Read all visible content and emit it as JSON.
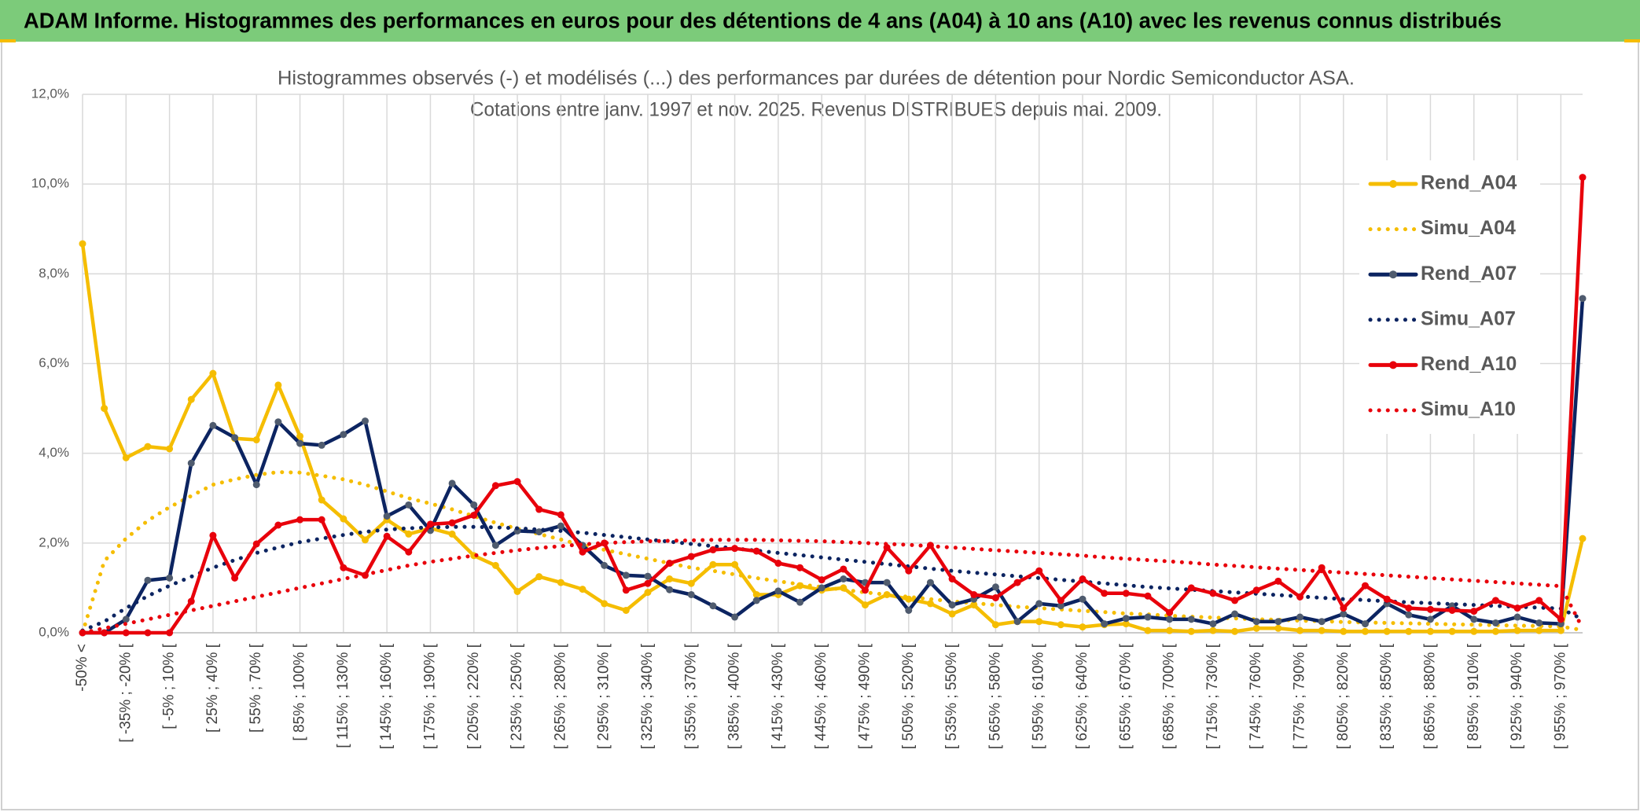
{
  "header": {
    "title": "ADAM Informe. Histogrammes des performances en euros pour des détentions de 4 ans (A04) à 10 ans (A10) avec les revenus connus distribués"
  },
  "chart_data": {
    "type": "line",
    "title": [
      "Histogrammes observés (-) et modélisés (...) des performances par durées de détention pour Nordic Semiconductor ASA.",
      "Cotations entre janv. 1997 et nov. 2025. Revenus DISTRIBUES depuis mai. 2009."
    ],
    "categories": [
      "-50% <",
      null,
      "[ -35% ; -20% [",
      null,
      "[ -5% ; 10% [",
      null,
      "[ 25% ; 40% [",
      null,
      "[ 55% ; 70% [",
      null,
      "[ 85% ; 100% [",
      null,
      "[ 115% ; 130% [",
      null,
      "[ 145% ; 160% [",
      null,
      "[ 175% ; 190% [",
      null,
      "[ 205% ; 220% [",
      null,
      "[ 235% ; 250% [",
      null,
      "[ 265% ; 280% [",
      null,
      "[ 295% ; 310% [",
      null,
      "[ 325% ; 340% [",
      null,
      "[ 355% ; 370% [",
      null,
      "[ 385% ; 400% [",
      null,
      "[ 415% ; 430% [",
      null,
      "[ 445% ; 460% [",
      null,
      "[ 475% ; 490% [",
      null,
      "[ 505% ; 520% [",
      null,
      "[ 535% ; 550% [",
      null,
      "[ 565% ; 580% [",
      null,
      "[ 595% ; 610% [",
      null,
      "[ 625% ; 640% [",
      null,
      "[ 655% ; 670% [",
      null,
      "[ 685% ; 700% [",
      null,
      "[ 715% ; 730% [",
      null,
      "[ 745% ; 760% [",
      null,
      "[ 775% ; 790% [",
      null,
      "[ 805% ; 820% [",
      null,
      "[ 835% ; 850% [",
      null,
      "[ 865% ; 880% [",
      null,
      "[ 895% ; 910% [",
      null,
      "[ 925% ; 940% [",
      null,
      "[ 955% ; 970% [",
      null
    ],
    "ylim": [
      0,
      12
    ],
    "yticks": [
      {
        "value": 0,
        "label": "0,0%"
      },
      {
        "value": 2,
        "label": "2,0%"
      },
      {
        "value": 4,
        "label": "4,0%"
      },
      {
        "value": 6,
        "label": "6,0%"
      },
      {
        "value": 8,
        "label": "8,0%"
      },
      {
        "value": 10,
        "label": "10,0%"
      },
      {
        "value": 12,
        "label": "12,0%"
      }
    ],
    "grid": true,
    "legend": "right",
    "series": [
      {
        "name": "Rend_A04",
        "color": "#f5bd00",
        "style": "solid",
        "markers": true,
        "marker_color": "#f5bd00",
        "values": [
          8.67,
          5.0,
          3.9,
          4.15,
          4.1,
          5.2,
          5.78,
          4.33,
          4.3,
          5.52,
          4.38,
          2.96,
          2.54,
          2.07,
          2.52,
          2.2,
          2.33,
          2.2,
          1.72,
          1.5,
          0.92,
          1.25,
          1.12,
          0.97,
          0.65,
          0.5,
          0.9,
          1.2,
          1.1,
          1.52,
          1.52,
          0.85,
          0.85,
          1.05,
          0.95,
          1.0,
          0.62,
          0.85,
          0.75,
          0.65,
          0.42,
          0.62,
          0.18,
          0.25,
          0.25,
          0.18,
          0.13,
          0.18,
          0.2,
          0.05,
          0.05,
          0.03,
          0.05,
          0.03,
          0.1,
          0.1,
          0.05,
          0.05,
          0.03,
          0.03,
          0.03,
          0.03,
          0.03,
          0.03,
          0.03,
          0.03,
          0.05,
          0.05,
          0.05,
          2.1
        ]
      },
      {
        "name": "Simu_A04",
        "color": "#f5bd00",
        "style": "dotted",
        "markers": false,
        "values": [
          0,
          1.6,
          2.1,
          2.5,
          2.8,
          3.05,
          3.3,
          3.42,
          3.52,
          3.58,
          3.57,
          3.5,
          3.42,
          3.3,
          3.15,
          3.0,
          2.88,
          2.75,
          2.6,
          2.45,
          2.32,
          2.2,
          2.08,
          1.95,
          1.85,
          1.75,
          1.65,
          1.55,
          1.45,
          1.38,
          1.3,
          1.22,
          1.15,
          1.08,
          1.02,
          0.96,
          0.9,
          0.85,
          0.8,
          0.75,
          0.7,
          0.66,
          0.62,
          0.58,
          0.55,
          0.52,
          0.49,
          0.46,
          0.43,
          0.41,
          0.38,
          0.36,
          0.34,
          0.32,
          0.3,
          0.29,
          0.27,
          0.26,
          0.24,
          0.23,
          0.22,
          0.21,
          0.2,
          0.19,
          0.18,
          0.17,
          0.16,
          0.15,
          0.14,
          0.06
        ]
      },
      {
        "name": "Rend_A07",
        "color": "#0c2461",
        "style": "solid",
        "markers": true,
        "marker_color": "#4f5b6e",
        "values": [
          0,
          0,
          0.3,
          1.17,
          1.22,
          3.78,
          4.62,
          4.35,
          3.3,
          4.7,
          4.22,
          4.18,
          4.42,
          4.72,
          2.6,
          2.85,
          2.28,
          3.33,
          2.85,
          1.95,
          2.27,
          2.25,
          2.38,
          1.95,
          1.5,
          1.28,
          1.26,
          0.96,
          0.85,
          0.6,
          0.35,
          0.72,
          0.93,
          0.68,
          1.0,
          1.2,
          1.12,
          1.12,
          0.5,
          1.12,
          0.62,
          0.75,
          1.02,
          0.25,
          0.65,
          0.6,
          0.75,
          0.2,
          0.32,
          0.35,
          0.3,
          0.3,
          0.2,
          0.42,
          0.25,
          0.25,
          0.35,
          0.25,
          0.42,
          0.2,
          0.65,
          0.4,
          0.3,
          0.6,
          0.3,
          0.22,
          0.35,
          0.22,
          0.2,
          7.45
        ]
      },
      {
        "name": "Simu_A07",
        "color": "#0c2461",
        "style": "dotted",
        "markers": false,
        "values": [
          0.05,
          0.25,
          0.55,
          0.82,
          1.05,
          1.25,
          1.45,
          1.62,
          1.78,
          1.9,
          2.02,
          2.1,
          2.18,
          2.25,
          2.3,
          2.33,
          2.35,
          2.36,
          2.36,
          2.35,
          2.33,
          2.3,
          2.27,
          2.23,
          2.18,
          2.13,
          2.08,
          2.03,
          1.98,
          1.93,
          1.88,
          1.83,
          1.78,
          1.73,
          1.68,
          1.63,
          1.58,
          1.53,
          1.48,
          1.43,
          1.38,
          1.34,
          1.3,
          1.26,
          1.22,
          1.18,
          1.14,
          1.1,
          1.06,
          1.02,
          0.99,
          0.96,
          0.93,
          0.9,
          0.87,
          0.84,
          0.81,
          0.78,
          0.75,
          0.73,
          0.7,
          0.68,
          0.66,
          0.64,
          0.62,
          0.6,
          0.58,
          0.56,
          0.54,
          0.3
        ]
      },
      {
        "name": "Rend_A10",
        "color": "#e8000b",
        "style": "solid",
        "markers": true,
        "marker_color": "#e8000b",
        "values": [
          0,
          0,
          0,
          0,
          0,
          0.7,
          2.17,
          1.22,
          1.98,
          2.4,
          2.52,
          2.52,
          1.45,
          1.28,
          2.15,
          1.8,
          2.42,
          2.45,
          2.62,
          3.28,
          3.37,
          2.75,
          2.63,
          1.8,
          2.0,
          0.95,
          1.1,
          1.55,
          1.7,
          1.85,
          1.88,
          1.82,
          1.55,
          1.45,
          1.18,
          1.42,
          0.95,
          1.9,
          1.38,
          1.95,
          1.2,
          0.85,
          0.78,
          1.12,
          1.38,
          0.72,
          1.2,
          0.88,
          0.88,
          0.82,
          0.45,
          1.0,
          0.88,
          0.72,
          0.95,
          1.15,
          0.8,
          1.45,
          0.55,
          1.05,
          0.75,
          0.55,
          0.52,
          0.5,
          0.48,
          0.72,
          0.55,
          0.72,
          0.3,
          10.15
        ]
      },
      {
        "name": "Simu_A10",
        "color": "#e8000b",
        "style": "dotted",
        "markers": false,
        "values": [
          0,
          0.1,
          0.2,
          0.3,
          0.4,
          0.5,
          0.6,
          0.7,
          0.8,
          0.9,
          1.0,
          1.1,
          1.2,
          1.3,
          1.4,
          1.5,
          1.58,
          1.65,
          1.72,
          1.78,
          1.84,
          1.89,
          1.93,
          1.97,
          2.0,
          2.02,
          2.04,
          2.05,
          2.06,
          2.07,
          2.07,
          2.07,
          2.06,
          2.05,
          2.04,
          2.02,
          2.0,
          1.98,
          1.96,
          1.93,
          1.9,
          1.87,
          1.84,
          1.81,
          1.78,
          1.75,
          1.72,
          1.68,
          1.65,
          1.62,
          1.59,
          1.56,
          1.52,
          1.49,
          1.46,
          1.43,
          1.4,
          1.37,
          1.34,
          1.31,
          1.28,
          1.25,
          1.22,
          1.19,
          1.16,
          1.13,
          1.1,
          1.07,
          1.04,
          0.1
        ]
      }
    ]
  }
}
